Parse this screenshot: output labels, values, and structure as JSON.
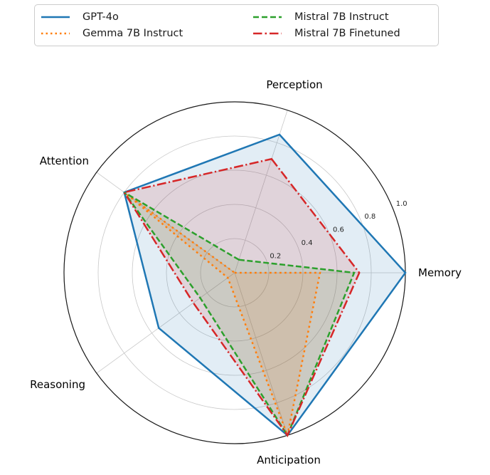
{
  "figure": {
    "background": "#ffffff"
  },
  "legend": {
    "items": [
      {
        "label": "GPT-4o",
        "color": "#1f77b4",
        "linestyle": "solid"
      },
      {
        "label": "Gemma 7B Instruct",
        "color": "#ff7f0e",
        "linestyle": "dotted"
      },
      {
        "label": "Mistral 7B Instruct",
        "color": "#2ca02c",
        "linestyle": "dashed"
      },
      {
        "label": "Mistral 7B Finetuned",
        "color": "#d62728",
        "linestyle": "dashdot"
      }
    ]
  },
  "chart_data": {
    "type": "radar",
    "categories": [
      "Perception",
      "Memory",
      "Anticipation",
      "Reasoning",
      "Attention"
    ],
    "series": [
      {
        "name": "GPT-4o",
        "color": "#1f77b4",
        "linestyle": "solid",
        "values": [
          0.85,
          1.0,
          1.0,
          0.55,
          0.8
        ]
      },
      {
        "name": "Gemma 7B Instruct",
        "color": "#ff7f0e",
        "linestyle": "dotted",
        "values": [
          0.0,
          0.5,
          1.0,
          0.05,
          0.8
        ]
      },
      {
        "name": "Mistral 7B Instruct",
        "color": "#2ca02c",
        "linestyle": "dashed",
        "values": [
          0.08,
          0.7,
          1.0,
          0.25,
          0.8
        ]
      },
      {
        "name": "Mistral 7B Finetuned",
        "color": "#d62728",
        "linestyle": "dashdot",
        "values": [
          0.7,
          0.73,
          1.0,
          0.3,
          0.8
        ]
      }
    ],
    "radial_ticks": [
      0.2,
      0.4,
      0.6,
      0.8,
      1.0
    ],
    "radial_tick_labels": [
      "0.2",
      "0.4",
      "0.6",
      "0.8",
      "1.0"
    ],
    "rlim": [
      0,
      1.0
    ],
    "grid": true,
    "grid_color": "#c8c8c8",
    "outline_color": "#1a1a1a",
    "fill_opacity": 0.13,
    "legend_position": "upper center",
    "title": ""
  }
}
